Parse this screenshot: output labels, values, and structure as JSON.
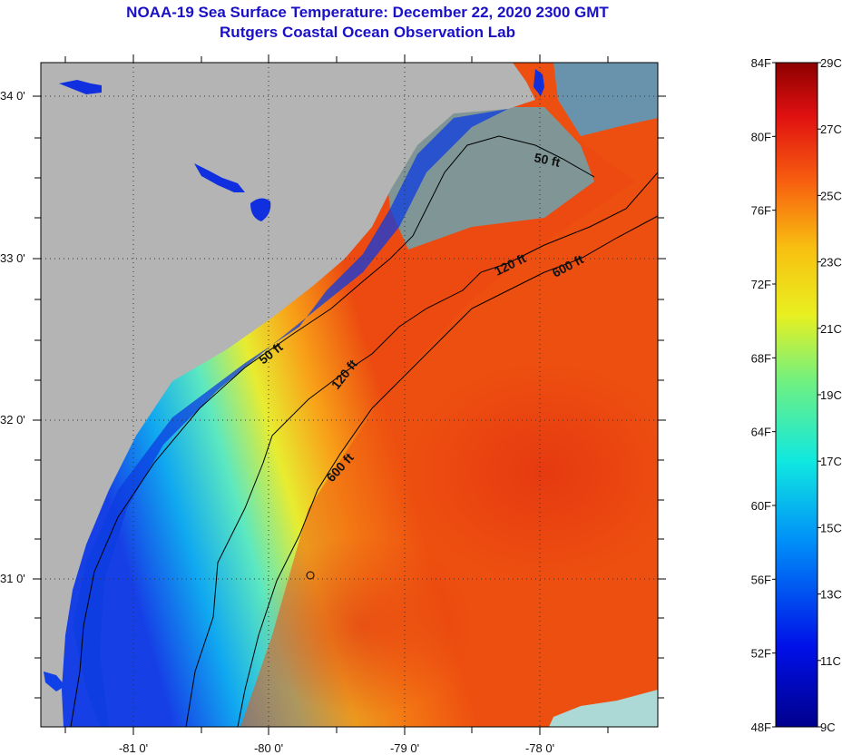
{
  "title": "NOAA-19 Sea Surface Temperature:  December 22, 2020 2300 GMT",
  "subtitle": "Rutgers Coastal Ocean Observation Lab",
  "longitude_labels": [
    "-81 0'",
    "-80 0'",
    "-79 0'",
    "-78 0'"
  ],
  "latitude_labels": [
    "34 0'",
    "33 0'",
    "32 0'",
    "31 0'"
  ],
  "isobath_labels": {
    "fifty_north": "50 ft",
    "fifty_south": "50 ft",
    "one_twenty_north": "120 ft",
    "one_twenty_south": "120 ft",
    "six_hundred_north": "600 ft",
    "six_hundred_south": "600 ft"
  },
  "colorbar": {
    "fahrenheit_labels": [
      "84F",
      "80F",
      "76F",
      "72F",
      "68F",
      "64F",
      "60F",
      "56F",
      "52F",
      "48F"
    ],
    "celsius_labels": [
      "29C",
      "27C",
      "25C",
      "23C",
      "21C",
      "19C",
      "17C",
      "15C",
      "13C",
      "11C",
      "9C"
    ],
    "range_f": [
      48,
      84
    ],
    "range_c": [
      9,
      29
    ]
  },
  "colors": {
    "land": "#b4b4b4",
    "title": "#1a10c8",
    "cold": "#0a28d8",
    "warm": "#e8400a"
  }
}
